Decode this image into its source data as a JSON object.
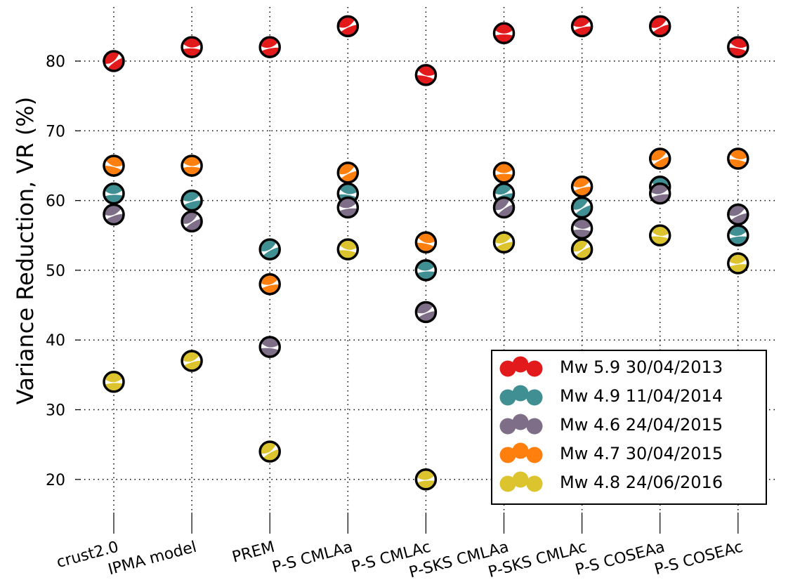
{
  "chart_data": {
    "type": "scatter",
    "title": "",
    "xlabel": "",
    "ylabel": "Variance Reduction, VR (%)",
    "categories": [
      "crust2.0",
      "IPMA model",
      "PREM",
      "P-S CMLAa",
      "P-S CMLAc",
      "P-SKS CMLAa",
      "P-SKS CMLAc",
      "P-S COSEAa",
      "P-S COSEAc"
    ],
    "ylim": [
      14.5,
      87.5
    ],
    "yticks": [
      20,
      30,
      40,
      50,
      60,
      70,
      80
    ],
    "grid": true,
    "legend_position": "lower-right",
    "marker": "beachball",
    "series": [
      {
        "name": "Mw 5.9 30/04/2013",
        "color": "#e31a1c",
        "values": [
          80,
          82,
          82,
          85,
          78,
          84,
          85,
          85,
          82
        ]
      },
      {
        "name": "Mw 4.9 11/04/2014",
        "color": "#3f8f93",
        "values": [
          61,
          60,
          53,
          61,
          50,
          61,
          59,
          62,
          55
        ]
      },
      {
        "name": "Mw 4.6 24/04/2015",
        "color": "#7e6e88",
        "values": [
          58,
          57,
          39,
          59,
          44,
          59,
          56,
          61,
          58
        ]
      },
      {
        "name": "Mw 4.7 30/04/2015",
        "color": "#ff7f0e",
        "values": [
          65,
          65,
          48,
          64,
          54,
          64,
          62,
          66,
          66
        ]
      },
      {
        "name": "Mw 4.8 24/06/2016",
        "color": "#dcc42e",
        "values": [
          34,
          37,
          24,
          53,
          20,
          54,
          53,
          55,
          51
        ]
      }
    ]
  }
}
